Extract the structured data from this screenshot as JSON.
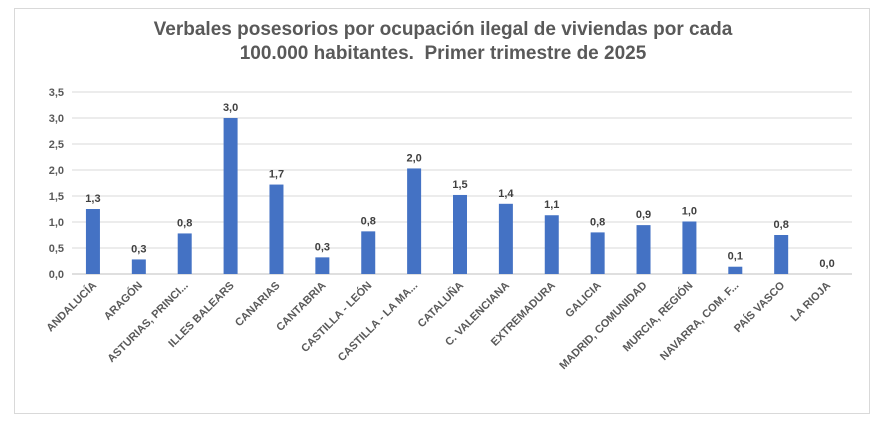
{
  "chart_data": {
    "type": "bar",
    "title_line1": "Verbales posesorios por ocupación ilegal de viviendas por cada",
    "title_line2": "100.000 habitantes.  Primer trimestre de 2025",
    "xlabel": "",
    "ylabel": "",
    "ylim": [
      0,
      3.5
    ],
    "yticks": [
      "0,0",
      "0,5",
      "1,0",
      "1,5",
      "2,0",
      "2,5",
      "3,0",
      "3,5"
    ],
    "grid": true,
    "bar_color": "#4472c4",
    "categories": [
      "ANDALUCÍA",
      "ARAGÓN",
      "ASTURIAS, PRINCI...",
      "ILLES BALEARS",
      "CANARIAS",
      "CANTABRIA",
      "CASTILLA - LEÓN",
      "CASTILLA - LA MA...",
      "CATALUÑA",
      "C. VALENCIANA",
      "EXTREMADURA",
      "GALICIA",
      "MADRID, COMUNIDAD",
      "MURCIA, REGIÓN",
      "NAVARRA, COM. F...",
      "PAÍS VASCO",
      "LA RIOJA"
    ],
    "values": [
      1.25,
      0.28,
      0.78,
      3.0,
      1.72,
      0.32,
      0.82,
      2.03,
      1.52,
      1.35,
      1.13,
      0.8,
      0.94,
      1.01,
      0.14,
      0.75,
      0.0
    ],
    "data_labels": [
      "1,3",
      "0,3",
      "0,8",
      "3,0",
      "1,7",
      "0,3",
      "0,8",
      "2,0",
      "1,5",
      "1,4",
      "1,1",
      "0,8",
      "0,9",
      "1,0",
      "0,1",
      "0,8",
      "0,0"
    ]
  }
}
